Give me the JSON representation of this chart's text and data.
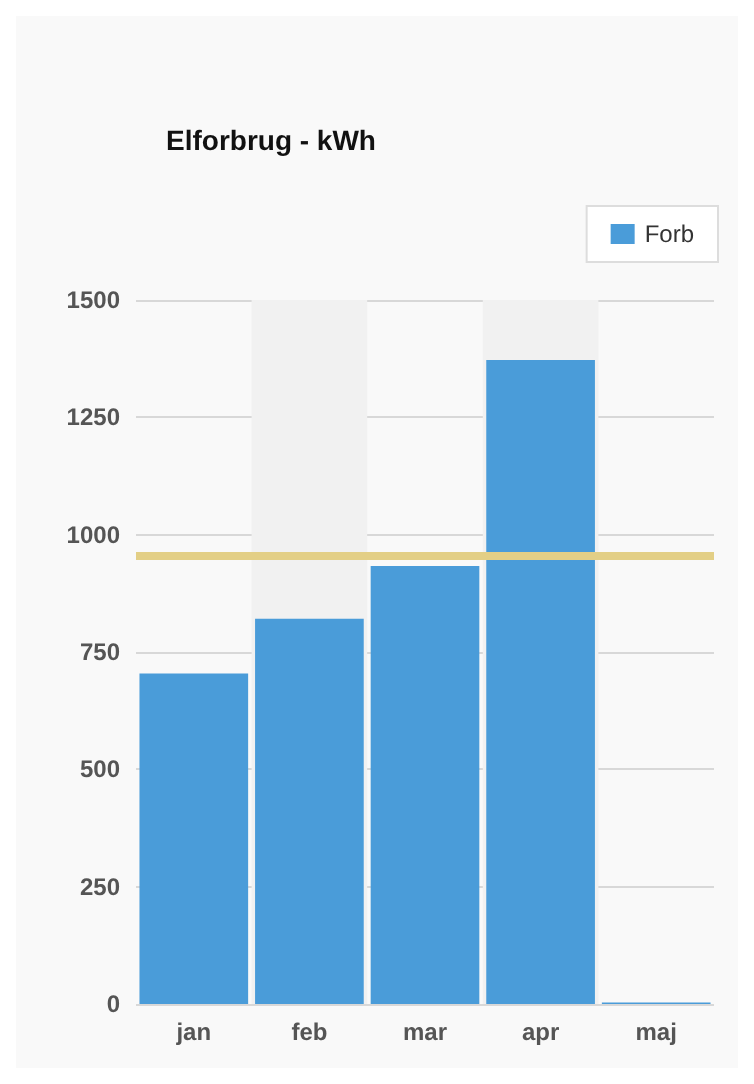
{
  "chart_data": {
    "type": "bar",
    "title": "Elforbrug - kWh",
    "categories": [
      "jan",
      "feb",
      "mar",
      "apr",
      "maj"
    ],
    "series": [
      {
        "name": "Forb",
        "color": "#4a9cd9",
        "values": [
          704,
          821,
          933,
          1372,
          3
        ]
      }
    ],
    "ylim": [
      0,
      1500
    ],
    "yticks": [
      0,
      250,
      500,
      750,
      1000,
      1250,
      1500
    ],
    "grid": "y",
    "legend": "top right",
    "ref_lines": [
      {
        "axis": "y",
        "value": 954,
        "color": "#e3cf86"
      }
    ],
    "bands": [
      {
        "axis": "x",
        "from": "feb",
        "to": "feb",
        "color": "#f1f1f1"
      },
      {
        "axis": "x",
        "from": "apr",
        "to": "apr",
        "color": "#f1f1f1"
      }
    ]
  }
}
